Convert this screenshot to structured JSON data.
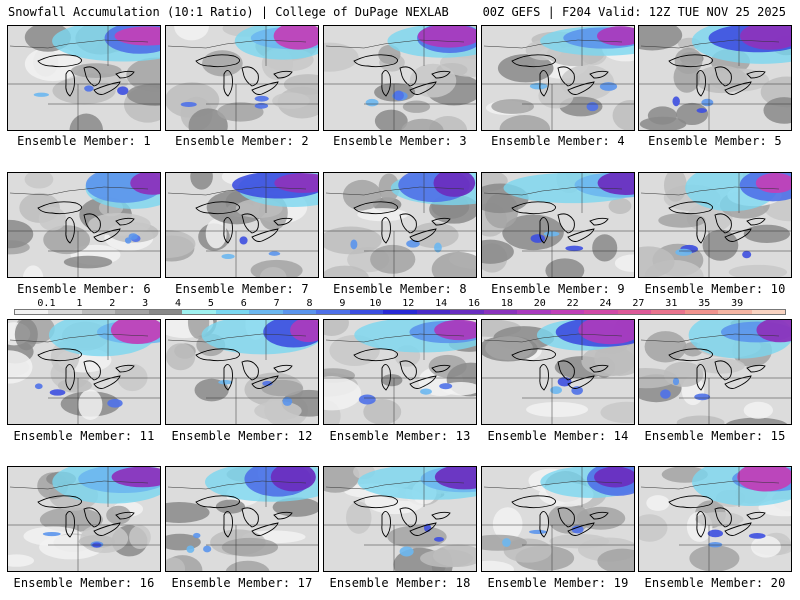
{
  "header": {
    "left_title": "Snowfall Accumulation (10:1 Ratio) | College of DuPage NEXLAB",
    "right_title": "00Z GEFS | F204 Valid: 12Z TUE NOV 25 2025"
  },
  "members": [
    "Ensemble Member: 1",
    "Ensemble Member: 2",
    "Ensemble Member: 3",
    "Ensemble Member: 4",
    "Ensemble Member: 5",
    "Ensemble Member: 6",
    "Ensemble Member: 7",
    "Ensemble Member: 8",
    "Ensemble Member: 9",
    "Ensemble Member: 10",
    "Ensemble Member: 11",
    "Ensemble Member: 12",
    "Ensemble Member: 13",
    "Ensemble Member: 14",
    "Ensemble Member: 15",
    "Ensemble Member: 16",
    "Ensemble Member: 17",
    "Ensemble Member: 18",
    "Ensemble Member: 19",
    "Ensemble Member: 20"
  ],
  "colorbar": {
    "labels": [
      "0.1",
      "1",
      "2",
      "3",
      "4",
      "5",
      "6",
      "7",
      "8",
      "9",
      "10",
      "12",
      "14",
      "16",
      "18",
      "20",
      "22",
      "24",
      "27",
      "31",
      "35",
      "39"
    ],
    "colors": [
      "#f2f2f2",
      "#d9d9d9",
      "#bdbdbd",
      "#a3a3a3",
      "#8a8a8a",
      "#9ef0ef",
      "#7ad7f0",
      "#6cb7ef",
      "#5b95ec",
      "#4f71e8",
      "#3d4fe0",
      "#2a2ad4",
      "#4b2cc8",
      "#6a2fc0",
      "#8b34bd",
      "#a93bbe",
      "#c041b8",
      "#d04ba8",
      "#dc5a98",
      "#e8748e",
      "#f0938e",
      "#f5b5a3",
      "#f8d3c1"
    ]
  },
  "icon_names": {
    "map": "great-lakes-map",
    "lakes": "lake-outline-icon"
  }
}
